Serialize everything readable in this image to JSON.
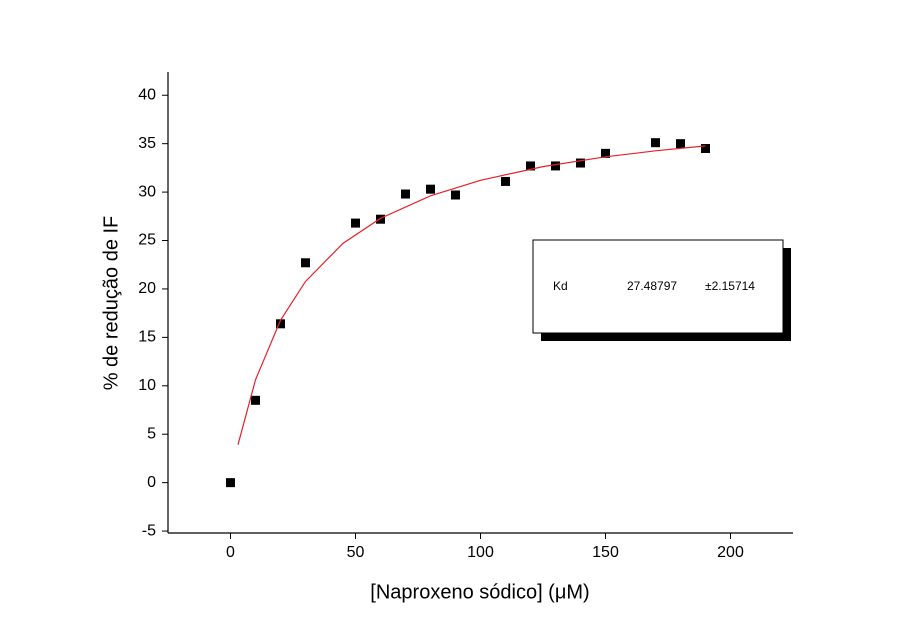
{
  "chart_data": {
    "type": "scatter",
    "x_label": "[Naproxeno sódico] (μM)",
    "y_label": "% de redução de IF",
    "xlim": [
      -25,
      225
    ],
    "ylim": [
      -5.2,
      42.4
    ],
    "xticks": [
      0,
      50,
      100,
      150,
      200
    ],
    "yticks": [
      -5,
      0,
      5,
      10,
      15,
      20,
      25,
      30,
      35,
      40
    ],
    "series": [
      {
        "kind": "points",
        "color": "#000000",
        "x": [
          0,
          10,
          20,
          30,
          50,
          60,
          70,
          80,
          90,
          110,
          120,
          130,
          140,
          150,
          170,
          180,
          190
        ],
        "values": [
          0,
          8.5,
          16.4,
          22.7,
          26.8,
          27.2,
          29.8,
          30.3,
          29.7,
          31.1,
          32.7,
          32.7,
          33.0,
          34.0,
          35.1,
          35.0,
          34.5
        ]
      },
      {
        "kind": "line",
        "color": "#e8202a",
        "x": [
          3,
          10,
          20,
          30,
          45,
          60,
          80,
          100,
          125,
          150,
          170,
          190
        ],
        "values": [
          3.92,
          10.62,
          16.76,
          20.77,
          24.71,
          27.29,
          29.62,
          31.22,
          32.63,
          33.64,
          34.26,
          34.77
        ]
      }
    ],
    "fit_table": {
      "parameter": "Kd",
      "value": "27.48797",
      "error": "±2.15714"
    }
  }
}
